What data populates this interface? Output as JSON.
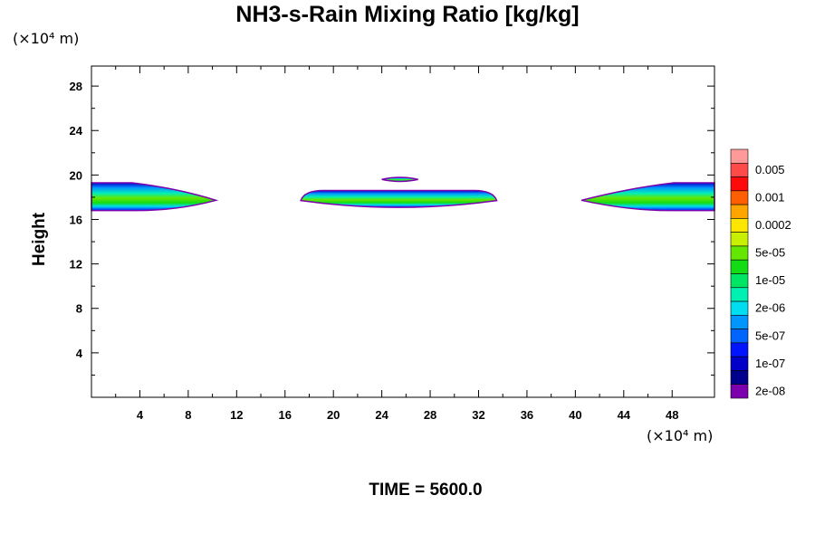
{
  "chart_data": {
    "type": "heatmap",
    "title": "NH3-s-Rain Mixing Ratio [kg/kg]",
    "ylabel": "Height",
    "xlabel": "",
    "x_unit": "(×10⁴ m)",
    "y_unit": "(×10⁴ m)",
    "xlim": [
      0,
      51.5
    ],
    "ylim": [
      0,
      29.8
    ],
    "x_ticks": [
      4,
      8,
      12,
      16,
      20,
      24,
      28,
      32,
      36,
      40,
      44,
      48
    ],
    "y_ticks": [
      4,
      8,
      12,
      16,
      20,
      24,
      28
    ],
    "time_label": "TIME = 5600.0",
    "colorbar": {
      "levels": [
        "0.005",
        "0.001",
        "0.0002",
        "5e-05",
        "1e-05",
        "2e-06",
        "5e-07",
        "1e-07",
        "2e-08"
      ],
      "colors": [
        "#ff9a9a",
        "#ff4a4a",
        "#ff0a0a",
        "#ff5f00",
        "#ffa500",
        "#ffe600",
        "#c8f000",
        "#64e600",
        "#14dc14",
        "#00e664",
        "#00f0b4",
        "#00dcf0",
        "#0096ff",
        "#0064ff",
        "#0014ff",
        "#0000c8",
        "#00008c",
        "#7d00af"
      ]
    },
    "regions": [
      {
        "name": "left-band",
        "x_range": [
          0,
          10.3
        ],
        "y_range": [
          16.8,
          19.3
        ]
      },
      {
        "name": "center-band",
        "x_range": [
          17.3,
          33.5
        ],
        "y_range": [
          16.8,
          18.6
        ]
      },
      {
        "name": "right-band",
        "x_range": [
          40.5,
          51.5
        ],
        "y_range": [
          16.8,
          19.3
        ]
      },
      {
        "name": "center-top-blob",
        "x_range": [
          24.0,
          27.0
        ],
        "y_range": [
          19.4,
          19.8
        ]
      }
    ]
  }
}
